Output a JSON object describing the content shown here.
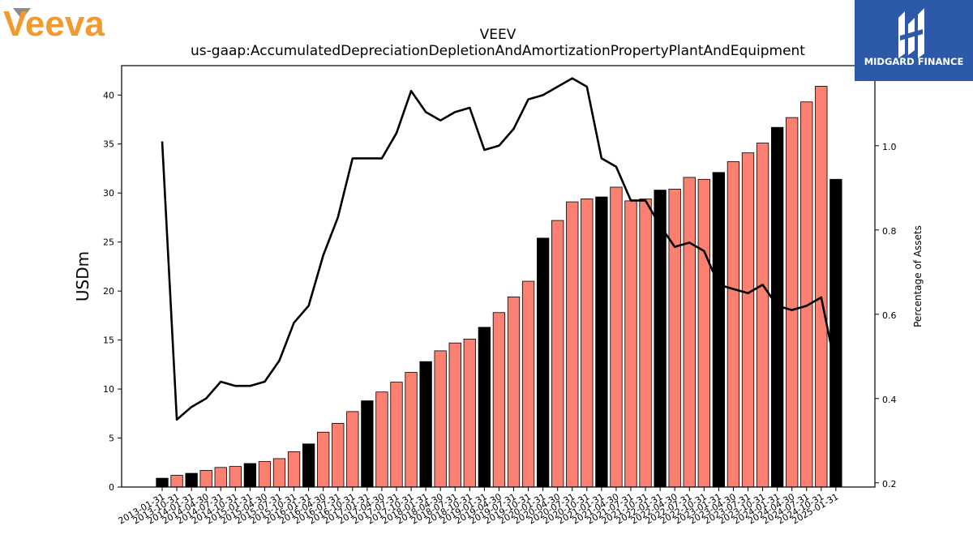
{
  "brand": {
    "left_logo_text": "Veeva",
    "right_logo_text": "MIDGARD FINANCE",
    "left_color": "#f29a2e",
    "right_bg": "#2d5aa8"
  },
  "chart_data": {
    "type": "bar",
    "title": "VEEV",
    "subtitle": "us-gaap:AccumulatedDepreciationDepletionAndAmortizationPropertyPlantAndEquipment",
    "ylabel": "USDm",
    "y2label": "Percentage of Assets",
    "ylim": [
      0,
      43
    ],
    "y2lim": [
      0.19,
      1.19
    ],
    "yticks": [
      0,
      5,
      10,
      15,
      20,
      25,
      30,
      35,
      40
    ],
    "y2ticks": [
      0.2,
      0.4,
      0.6,
      0.8,
      1.0
    ],
    "grid": false,
    "categories": [
      "2013-01-31",
      "2013-10-31",
      "2014-01-31",
      "2014-04-30",
      "2014-07-31",
      "2014-10-31",
      "2015-01-31",
      "2015-04-30",
      "2015-07-31",
      "2015-10-31",
      "2016-01-31",
      "2016-04-30",
      "2016-07-31",
      "2016-10-31",
      "2017-01-31",
      "2017-04-30",
      "2017-07-31",
      "2017-10-31",
      "2018-01-31",
      "2018-04-30",
      "2018-07-31",
      "2018-10-31",
      "2019-01-31",
      "2019-04-30",
      "2019-07-31",
      "2019-10-31",
      "2020-01-31",
      "2020-04-30",
      "2020-07-31",
      "2020-10-31",
      "2021-01-31",
      "2021-04-30",
      "2021-07-31",
      "2021-10-31",
      "2022-01-31",
      "2022-04-30",
      "2022-07-31",
      "2022-10-31",
      "2023-01-31",
      "2023-04-30",
      "2023-07-31",
      "2023-10-31",
      "2024-01-31",
      "2024-04-30",
      "2024-07-31",
      "2024-10-31",
      "2025-01-31"
    ],
    "series": [
      {
        "values": [
          0.9,
          1.2,
          1.4,
          1.7,
          2.0,
          2.1,
          2.4,
          2.6,
          2.9,
          3.6,
          4.4,
          5.6,
          6.5,
          7.7,
          8.8,
          9.7,
          10.7,
          11.7,
          12.8,
          13.9,
          14.7,
          15.1,
          16.3,
          17.8,
          19.4,
          21.0,
          25.4,
          27.2,
          29.1,
          29.4,
          29.6,
          30.6,
          29.2,
          29.4,
          30.3,
          30.4,
          31.6,
          31.4,
          32.1,
          33.2,
          34.1,
          35.1,
          36.7,
          37.7,
          39.3,
          40.9,
          31.4
        ],
        "annual_flags": [
          1,
          0,
          1,
          0,
          0,
          0,
          1,
          0,
          0,
          0,
          1,
          0,
          0,
          0,
          1,
          0,
          0,
          0,
          1,
          0,
          0,
          0,
          1,
          0,
          0,
          0,
          1,
          0,
          0,
          0,
          1,
          0,
          0,
          0,
          1,
          0,
          0,
          0,
          1,
          0,
          0,
          0,
          1,
          0,
          0,
          0,
          1
        ]
      },
      {
        "axis": "right",
        "type": "line",
        "values": [
          1.01,
          0.35,
          0.38,
          0.4,
          0.44,
          0.43,
          0.43,
          0.44,
          0.49,
          0.58,
          0.62,
          0.74,
          0.83,
          0.97,
          0.97,
          0.97,
          1.03,
          1.13,
          1.08,
          1.06,
          1.08,
          1.09,
          0.99,
          1.0,
          1.04,
          1.11,
          1.12,
          1.14,
          1.16,
          1.14,
          0.97,
          0.95,
          0.87,
          0.87,
          0.81,
          0.76,
          0.77,
          0.75,
          0.67,
          0.66,
          0.65,
          0.67,
          0.62,
          0.61,
          0.62,
          0.64,
          0.47
        ]
      }
    ],
    "colors": {
      "quarter": "#fa8072",
      "annual": "#000000",
      "line": "#000000"
    }
  }
}
